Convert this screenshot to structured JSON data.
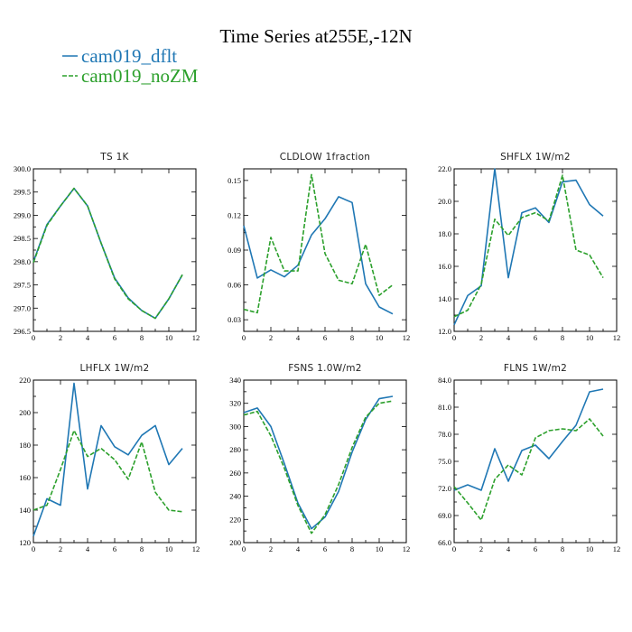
{
  "figure": {
    "title": "Time Series at255E,-12N",
    "legend": [
      {
        "label": "cam019_dflt",
        "color": "#1f77b4"
      },
      {
        "label": "cam019_noZM",
        "color": "#2ca02c"
      }
    ]
  },
  "chart_data": [
    {
      "type": "line",
      "title": "TS   1K",
      "x": [
        0,
        1,
        2,
        3,
        4,
        5,
        6,
        7,
        8,
        9,
        10,
        11
      ],
      "xlim": [
        0,
        12
      ],
      "xticks": [
        0,
        2,
        4,
        6,
        8,
        10,
        12
      ],
      "ylim": [
        296.5,
        300.0
      ],
      "yticks": [
        296.5,
        297.0,
        297.5,
        298.0,
        298.5,
        299.0,
        299.5,
        300.0
      ],
      "ytick_labels": [
        "296.5",
        "297.0",
        "297.5",
        "298.0",
        "298.5",
        "299.0",
        "299.5",
        "300.0"
      ],
      "series": [
        {
          "name": "cam019_dflt",
          "values": [
            298.0,
            298.8,
            299.2,
            299.58,
            299.2,
            298.4,
            297.65,
            297.22,
            296.95,
            296.78,
            297.2,
            297.72
          ]
        },
        {
          "name": "cam019_noZM",
          "values": [
            297.98,
            298.78,
            299.2,
            299.58,
            299.2,
            298.4,
            297.63,
            297.2,
            296.95,
            296.78,
            297.2,
            297.72
          ]
        }
      ]
    },
    {
      "type": "line",
      "title": "CLDLOW   1fraction",
      "x": [
        0,
        1,
        2,
        3,
        4,
        5,
        6,
        7,
        8,
        9,
        10,
        11
      ],
      "xlim": [
        0,
        12
      ],
      "xticks": [
        0,
        2,
        4,
        6,
        8,
        10,
        12
      ],
      "ylim": [
        0.02,
        0.16
      ],
      "yticks": [
        0.03,
        0.06,
        0.09,
        0.12,
        0.15
      ],
      "ytick_labels": [
        "0.03",
        "0.06",
        "0.09",
        "0.12",
        "0.15"
      ],
      "series": [
        {
          "name": "cam019_dflt",
          "values": [
            0.111,
            0.066,
            0.073,
            0.067,
            0.077,
            0.103,
            0.117,
            0.136,
            0.131,
            0.061,
            0.041,
            0.035
          ]
        },
        {
          "name": "cam019_noZM",
          "values": [
            0.039,
            0.036,
            0.101,
            0.072,
            0.072,
            0.155,
            0.087,
            0.064,
            0.061,
            0.095,
            0.051,
            0.06
          ]
        }
      ]
    },
    {
      "type": "line",
      "title": "SHFLX   1W/m2",
      "x": [
        0,
        1,
        2,
        3,
        4,
        5,
        6,
        7,
        8,
        9,
        10,
        11
      ],
      "xlim": [
        0,
        12
      ],
      "xticks": [
        0,
        2,
        4,
        6,
        8,
        10,
        12
      ],
      "ylim": [
        12.0,
        22.0
      ],
      "yticks": [
        12.0,
        14.0,
        16.0,
        18.0,
        20.0,
        22.0
      ],
      "ytick_labels": [
        "12.0",
        "14.0",
        "16.0",
        "18.0",
        "20.0",
        "22.0"
      ],
      "series": [
        {
          "name": "cam019_dflt",
          "values": [
            12.4,
            14.2,
            14.8,
            22.0,
            15.3,
            19.3,
            19.6,
            18.7,
            21.2,
            21.3,
            19.8,
            19.1
          ]
        },
        {
          "name": "cam019_noZM",
          "values": [
            12.9,
            13.3,
            14.9,
            18.9,
            17.9,
            19.0,
            19.3,
            18.8,
            21.6,
            17.0,
            16.7,
            15.3
          ]
        }
      ]
    },
    {
      "type": "line",
      "title": "LHFLX   1W/m2",
      "x": [
        0,
        1,
        2,
        3,
        4,
        5,
        6,
        7,
        8,
        9,
        10,
        11
      ],
      "xlim": [
        0,
        12
      ],
      "xticks": [
        0,
        2,
        4,
        6,
        8,
        10,
        12
      ],
      "ylim": [
        120,
        220
      ],
      "yticks": [
        120,
        140,
        160,
        180,
        200,
        220
      ],
      "ytick_labels": [
        "120",
        "140",
        "160",
        "180",
        "200",
        "220"
      ],
      "series": [
        {
          "name": "cam019_dflt",
          "values": [
            124,
            147,
            143,
            218,
            153,
            192,
            179,
            174,
            186,
            192,
            168,
            178
          ]
        },
        {
          "name": "cam019_noZM",
          "values": [
            140,
            143,
            165,
            189,
            173,
            178,
            171,
            159,
            182,
            151,
            140,
            139
          ]
        }
      ]
    },
    {
      "type": "line",
      "title": "FSNS   1.0W/m2",
      "x": [
        0,
        1,
        2,
        3,
        4,
        5,
        6,
        7,
        8,
        9,
        10,
        11
      ],
      "xlim": [
        0,
        12
      ],
      "xticks": [
        0,
        2,
        4,
        6,
        8,
        10,
        12
      ],
      "ylim": [
        200,
        340
      ],
      "yticks": [
        200,
        220,
        240,
        260,
        280,
        300,
        320,
        340
      ],
      "ytick_labels": [
        "200",
        "220",
        "240",
        "260",
        "280",
        "300",
        "320",
        "340"
      ],
      "series": [
        {
          "name": "cam019_dflt",
          "values": [
            312,
            316,
            300,
            268,
            234,
            212,
            222,
            244,
            278,
            306,
            324,
            326
          ]
        },
        {
          "name": "cam019_noZM",
          "values": [
            310,
            313,
            292,
            264,
            232,
            208,
            224,
            250,
            282,
            308,
            320,
            322
          ]
        }
      ]
    },
    {
      "type": "line",
      "title": "FLNS   1W/m2",
      "x": [
        0,
        1,
        2,
        3,
        4,
        5,
        6,
        7,
        8,
        9,
        10,
        11
      ],
      "xlim": [
        0,
        12
      ],
      "xticks": [
        0,
        2,
        4,
        6,
        8,
        10,
        12
      ],
      "ylim": [
        66.0,
        84.0
      ],
      "yticks": [
        66.0,
        69.0,
        72.0,
        75.0,
        78.0,
        81.0,
        84.0
      ],
      "ytick_labels": [
        "66.0",
        "69.0",
        "72.0",
        "75.0",
        "78.0",
        "81.0",
        "84.0"
      ],
      "series": [
        {
          "name": "cam019_dflt",
          "values": [
            71.8,
            72.4,
            71.8,
            76.4,
            72.8,
            76.2,
            76.8,
            75.3,
            77.2,
            79.0,
            82.7,
            83.0
          ]
        },
        {
          "name": "cam019_noZM",
          "values": [
            72.2,
            70.4,
            68.5,
            73.0,
            74.6,
            73.5,
            77.6,
            78.4,
            78.6,
            78.4,
            79.7,
            77.8
          ]
        }
      ]
    }
  ]
}
